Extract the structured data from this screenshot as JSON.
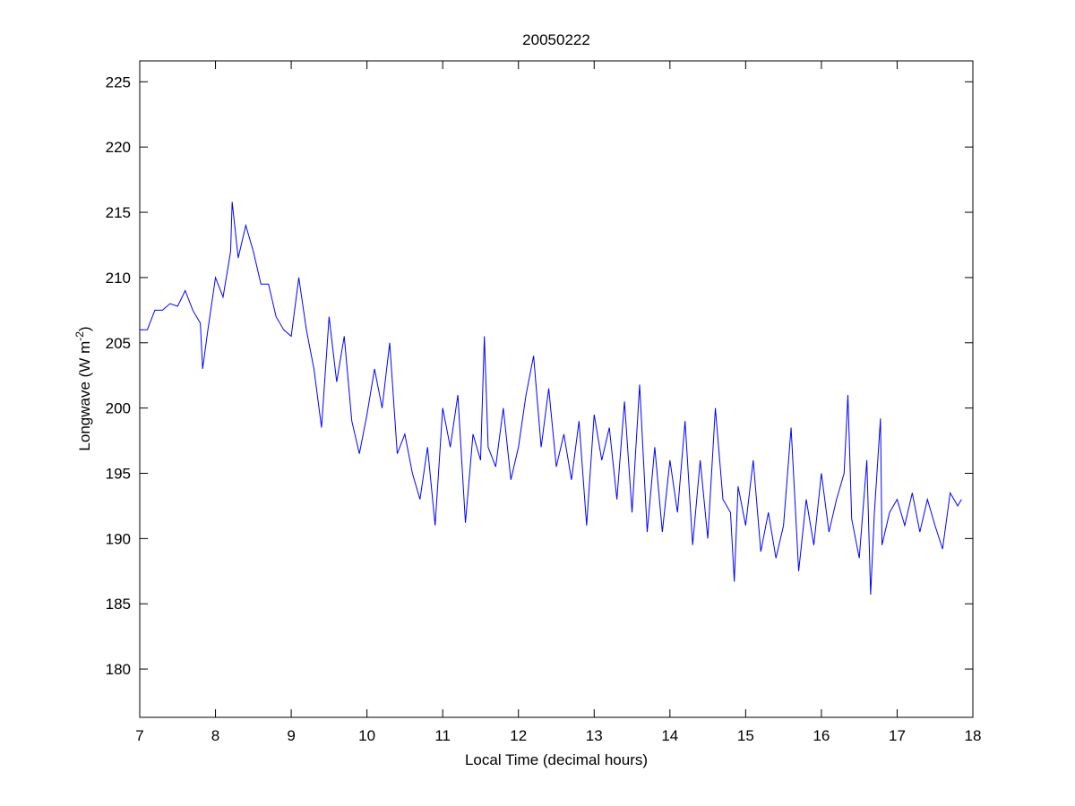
{
  "chart_data": {
    "type": "line",
    "title": "20050222",
    "xlabel": "Local Time (decimal hours)",
    "ylabel": "Longwave (W m",
    "ylabel_sup": "-2",
    "ylabel_end": ")",
    "x": [
      7.0,
      7.1,
      7.2,
      7.3,
      7.4,
      7.5,
      7.6,
      7.7,
      7.8,
      7.83,
      7.9,
      8.0,
      8.1,
      8.2,
      8.22,
      8.3,
      8.4,
      8.5,
      8.6,
      8.7,
      8.8,
      8.9,
      9.0,
      9.1,
      9.2,
      9.3,
      9.4,
      9.5,
      9.6,
      9.7,
      9.8,
      9.9,
      10.0,
      10.1,
      10.2,
      10.3,
      10.4,
      10.5,
      10.6,
      10.7,
      10.8,
      10.9,
      11.0,
      11.1,
      11.2,
      11.3,
      11.4,
      11.5,
      11.55,
      11.6,
      11.7,
      11.8,
      11.9,
      12.0,
      12.1,
      12.2,
      12.3,
      12.4,
      12.5,
      12.6,
      12.7,
      12.8,
      12.9,
      13.0,
      13.1,
      13.2,
      13.3,
      13.4,
      13.5,
      13.6,
      13.7,
      13.8,
      13.9,
      14.0,
      14.1,
      14.2,
      14.3,
      14.4,
      14.5,
      14.6,
      14.7,
      14.8,
      14.85,
      14.9,
      15.0,
      15.1,
      15.2,
      15.3,
      15.4,
      15.5,
      15.6,
      15.7,
      15.8,
      15.9,
      16.0,
      16.1,
      16.2,
      16.3,
      16.35,
      16.4,
      16.5,
      16.6,
      16.65,
      16.7,
      16.78,
      16.8,
      16.9,
      17.0,
      17.1,
      17.2,
      17.3,
      17.4,
      17.5,
      17.6,
      17.7,
      17.8,
      17.85
    ],
    "series": [
      {
        "name": "Longwave",
        "color": "#0000ff",
        "values": [
          206,
          206,
          207.5,
          207.5,
          208,
          207.8,
          209,
          207.5,
          206.5,
          203,
          206,
          210,
          208.5,
          212,
          215.8,
          211.5,
          214,
          212,
          209.5,
          209.5,
          207,
          206,
          205.5,
          210,
          206,
          203,
          198.5,
          207,
          202,
          205.5,
          199,
          196.5,
          199.5,
          203,
          200,
          205,
          196.5,
          198,
          195,
          193,
          197,
          191,
          200,
          197,
          201,
          191.2,
          198,
          196,
          205.5,
          197,
          195.5,
          200,
          194.5,
          197,
          201,
          204,
          197,
          201.5,
          195.5,
          198,
          194.5,
          199,
          191,
          199.5,
          196,
          198.5,
          193,
          200.5,
          192,
          201.8,
          190.5,
          197,
          190.5,
          196,
          192,
          199,
          189.5,
          196,
          190,
          200,
          193,
          192,
          186.7,
          194,
          191,
          196,
          189,
          192,
          188.5,
          191,
          198.5,
          187.5,
          193,
          189.5,
          195,
          190.5,
          193,
          195,
          201,
          191.5,
          188.5,
          196,
          185.7,
          192,
          199.2,
          189.5,
          192,
          193,
          191,
          193.5,
          190.5,
          193,
          191,
          189.2,
          193.5,
          192.5,
          193
        ]
      }
    ],
    "xlim": [
      7,
      18
    ],
    "xticks": [
      7,
      8,
      9,
      10,
      11,
      12,
      13,
      14,
      15,
      16,
      17,
      18
    ],
    "ylim": [
      176.3,
      226.6
    ],
    "yticks": [
      180,
      185,
      190,
      195,
      200,
      205,
      210,
      215,
      220,
      225
    ]
  }
}
